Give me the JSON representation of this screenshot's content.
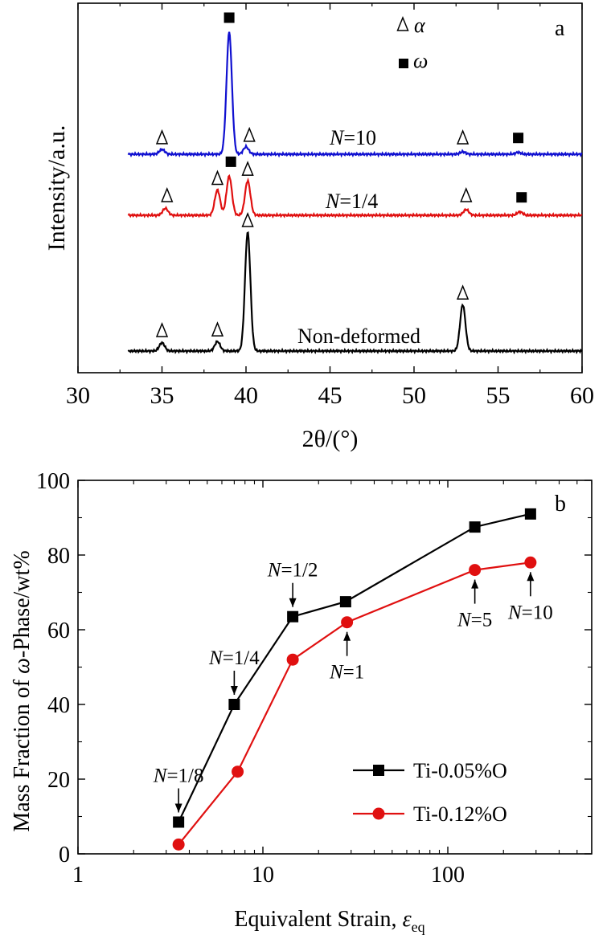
{
  "chart_data": [
    {
      "type": "line",
      "panel_label": "a",
      "xlabel": "2θ/(°)",
      "ylabel": "Intensity/a.u.",
      "xlim": [
        30,
        60
      ],
      "x_ticks": [
        "30",
        "35",
        "40",
        "45",
        "50",
        "55",
        "60"
      ],
      "legend": [
        {
          "symbol": "Δ",
          "label": "α"
        },
        {
          "symbol": "■",
          "label": "ω"
        }
      ],
      "legend_position": "top-right",
      "series": [
        {
          "name": "N=10",
          "color": "#1010d0",
          "peaks": [
            {
              "x": 35.0,
              "h": 0.04
            },
            {
              "x": 39.0,
              "h": 1.0
            },
            {
              "x": 40.0,
              "h": 0.06
            },
            {
              "x": 52.9,
              "h": 0.02
            },
            {
              "x": 56.2,
              "h": 0.015
            }
          ],
          "markers": [
            {
              "x": 35.0,
              "s": "alpha"
            },
            {
              "x": 39.0,
              "s": "omega"
            },
            {
              "x": 40.2,
              "s": "alpha"
            },
            {
              "x": 52.9,
              "s": "alpha"
            },
            {
              "x": 56.2,
              "s": "omega"
            }
          ]
        },
        {
          "name": "N=1/4",
          "color": "#e01010",
          "peaks": [
            {
              "x": 35.2,
              "h": 0.06
            },
            {
              "x": 38.3,
              "h": 0.22
            },
            {
              "x": 39.0,
              "h": 0.34
            },
            {
              "x": 40.1,
              "h": 0.3
            },
            {
              "x": 53.1,
              "h": 0.05
            },
            {
              "x": 56.3,
              "h": 0.03
            }
          ],
          "markers": [
            {
              "x": 35.3,
              "s": "alpha"
            },
            {
              "x": 38.3,
              "s": "alpha"
            },
            {
              "x": 39.1,
              "s": "omega"
            },
            {
              "x": 40.1,
              "s": "alpha"
            },
            {
              "x": 53.1,
              "s": "alpha"
            },
            {
              "x": 56.4,
              "s": "omega"
            }
          ]
        },
        {
          "name": "Non-deformed",
          "color": "#000000",
          "peaks": [
            {
              "x": 35.0,
              "h": 0.07
            },
            {
              "x": 38.3,
              "h": 0.08
            },
            {
              "x": 40.1,
              "h": 1.0
            },
            {
              "x": 52.9,
              "h": 0.39
            }
          ],
          "markers": [
            {
              "x": 35.0,
              "s": "alpha"
            },
            {
              "x": 38.3,
              "s": "alpha"
            },
            {
              "x": 40.1,
              "s": "alpha"
            },
            {
              "x": 52.9,
              "s": "alpha"
            }
          ]
        }
      ]
    },
    {
      "type": "line",
      "panel_label": "b",
      "xlabel": "Equivalent Strain, ε",
      "xlabel_sub": "eq",
      "ylabel": "Mass Fraction of ω-Phase/wt%",
      "xscale": "log",
      "xlim": [
        1,
        600
      ],
      "ylim": [
        0,
        100
      ],
      "x_ticks": [
        "1",
        "10",
        "100"
      ],
      "y_ticks": [
        "0",
        "20",
        "40",
        "60",
        "80",
        "100"
      ],
      "legend_position": "bottom-right",
      "series": [
        {
          "name": "Ti-0.05%O",
          "color": "#000000",
          "marker": "square",
          "x": [
            3.5,
            7.0,
            14.5,
            28.0,
            140,
            280
          ],
          "y": [
            8.5,
            40.0,
            63.5,
            67.5,
            87.5,
            91.0
          ]
        },
        {
          "name": "Ti-0.12%O",
          "color": "#e01010",
          "marker": "circle",
          "x": [
            3.5,
            7.3,
            14.5,
            28.5,
            140,
            280
          ],
          "y": [
            2.5,
            22.0,
            52.0,
            62.0,
            76.0,
            78.0
          ]
        }
      ],
      "annotations": [
        {
          "text": "N=1/8",
          "x": 3.5,
          "y": 8.5,
          "dir": "down"
        },
        {
          "text": "N=1/4",
          "x": 7.0,
          "y": 40.0,
          "dir": "down"
        },
        {
          "text": "N=1/2",
          "x": 14.5,
          "y": 63.5,
          "dir": "down"
        },
        {
          "text": "N=1",
          "x": 28.5,
          "y": 62.0,
          "dir": "up"
        },
        {
          "text": "N=5",
          "x": 140,
          "y": 76.0,
          "dir": "up"
        },
        {
          "text": "N=10",
          "x": 280,
          "y": 78.0,
          "dir": "up"
        }
      ]
    }
  ]
}
